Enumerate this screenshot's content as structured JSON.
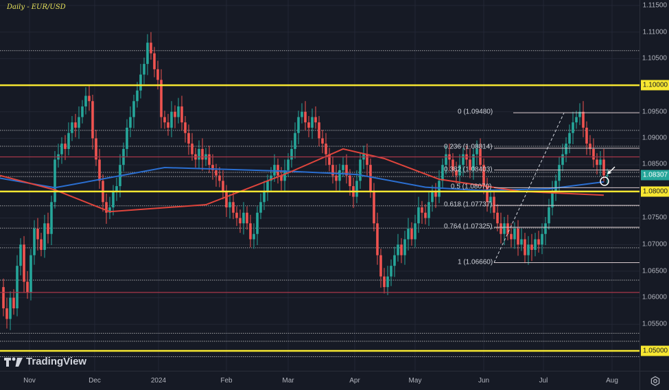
{
  "header": {
    "title": "Daily - EUR/USD"
  },
  "brand": {
    "name": "TradingView"
  },
  "colors": {
    "background": "#161a25",
    "grid": "#232735",
    "up_candle": "#26a69a",
    "down_candle": "#ef5350",
    "sma_blue": "#2b6fd1",
    "sma_red": "#e0453c",
    "key_level_yellow": "#f7e731",
    "horizontal_red": "#a8374a",
    "fib_line": "#d8c9cc",
    "last_price_bg": "#26a69a",
    "axis_text": "#b2b5be"
  },
  "price_axis": {
    "ticks": [
      "1.11500",
      "1.11000",
      "1.10500",
      "1.09500",
      "1.09000",
      "1.08500",
      "1.07500",
      "1.07000",
      "1.06500",
      "1.06000",
      "1.05500"
    ],
    "highlighted_levels": [
      "1.10000",
      "1.08000",
      "1.05000"
    ],
    "last_price": "1.08307"
  },
  "time_axis": {
    "ticks": [
      "Nov",
      "Dec",
      "2024",
      "Feb",
      "Mar",
      "Apr",
      "May",
      "Jun",
      "Jul",
      "Aug"
    ]
  },
  "fib_retracement": {
    "levels": [
      {
        "label": "0 (1.09480)"
      },
      {
        "label": "0.236 (1.08814)"
      },
      {
        "label": "0.382 (1.08403)"
      },
      {
        "label": "0.5 (1.08070)"
      },
      {
        "label": "0.618 (1.07737)"
      },
      {
        "label": "0.764 (1.07325)"
      },
      {
        "label": "1 (1.06660)"
      }
    ]
  },
  "chart_data": {
    "type": "candlestick",
    "title": "Daily - EUR/USD",
    "instrument": "EUR/USD",
    "timeframe": "Daily",
    "xlabel": "",
    "ylabel": "",
    "x_ticks": [
      "Nov",
      "Dec",
      "2024",
      "Feb",
      "Mar",
      "Apr",
      "May",
      "Jun",
      "Jul",
      "Aug"
    ],
    "y_ticks": [
      1.05,
      1.055,
      1.06,
      1.065,
      1.07,
      1.075,
      1.08,
      1.085,
      1.09,
      1.095,
      1.1,
      1.105,
      1.11,
      1.115
    ],
    "ylim": [
      1.0475,
      1.1155
    ],
    "grid": true,
    "last_price": 1.08307,
    "horizontal_levels": {
      "yellow": [
        1.1,
        1.08,
        1.05
      ],
      "red": [
        1.0865,
        1.061
      ],
      "dotted_white": [
        1.1065,
        1.0915,
        1.0885,
        1.0836,
        1.0828,
        1.0773,
        1.0731,
        1.0694,
        1.0633,
        1.0533,
        1.0518,
        1.0489
      ]
    },
    "moving_averages": [
      {
        "name": "SMA (blue)",
        "approx_path": [
          [
            0,
            1.0825
          ],
          [
            80,
            1.0807
          ],
          [
            240,
            1.0845
          ],
          [
            320,
            1.0842
          ],
          [
            420,
            1.0838
          ],
          [
            520,
            1.0832
          ],
          [
            620,
            1.0808
          ],
          [
            700,
            1.0802
          ],
          [
            800,
            1.0805
          ],
          [
            880,
            1.0818
          ]
        ]
      },
      {
        "name": "SMA (red)",
        "approx_path": [
          [
            0,
            1.083
          ],
          [
            80,
            1.0803
          ],
          [
            160,
            1.0762
          ],
          [
            300,
            1.0775
          ],
          [
            420,
            1.0835
          ],
          [
            500,
            1.088
          ],
          [
            560,
            1.0862
          ],
          [
            640,
            1.0823
          ],
          [
            760,
            1.08
          ],
          [
            880,
            1.0793
          ]
        ]
      }
    ],
    "fibonacci": {
      "from": 1.0666,
      "to": 1.0948,
      "levels": [
        {
          "ratio": 0,
          "price": 1.0948
        },
        {
          "ratio": 0.236,
          "price": 1.08814
        },
        {
          "ratio": 0.382,
          "price": 1.08403
        },
        {
          "ratio": 0.5,
          "price": 1.0807
        },
        {
          "ratio": 0.618,
          "price": 1.07737
        },
        {
          "ratio": 0.764,
          "price": 1.07325
        },
        {
          "ratio": 1,
          "price": 1.0666
        }
      ]
    },
    "approx_monthly_ranges": [
      {
        "month": "Nov 2023",
        "low": 1.0517,
        "high": 1.1017
      },
      {
        "month": "Dec 2023",
        "low": 1.0724,
        "high": 1.1139
      },
      {
        "month": "Jan 2024",
        "low": 1.0798,
        "high": 1.1
      },
      {
        "month": "Feb 2024",
        "low": 1.0696,
        "high": 1.0897
      },
      {
        "month": "Mar 2024",
        "low": 1.0766,
        "high": 1.098
      },
      {
        "month": "Apr 2024",
        "low": 1.0601,
        "high": 1.0885
      },
      {
        "month": "May 2024",
        "low": 1.0649,
        "high": 1.0895
      },
      {
        "month": "Jun 2024",
        "low": 1.0668,
        "high": 1.0916
      },
      {
        "month": "Jul 2024",
        "low": 1.0709,
        "high": 1.0948
      }
    ]
  }
}
